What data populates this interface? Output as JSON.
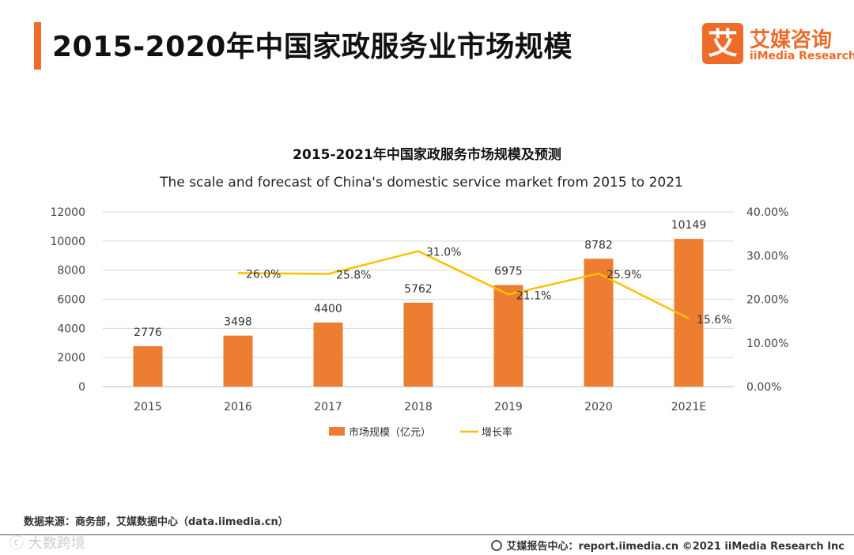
{
  "header": {
    "title": "2015-2020年中国家政服务业市场规模"
  },
  "logo": {
    "mark": "艾",
    "name_cn": "艾媒咨询",
    "name_en": "iiMedia Research"
  },
  "chart_data": {
    "type": "bar",
    "title": "2015-2021年中国家政服务市场规模及预测",
    "subtitle": "The scale and forecast of China's domestic service market from 2015 to 2021",
    "categories": [
      "2015",
      "2016",
      "2017",
      "2018",
      "2019",
      "2020",
      "2021E"
    ],
    "series": [
      {
        "name": "市场规模（亿元）",
        "type": "bar",
        "axis": "left",
        "color": "#ed7d31",
        "values": [
          2776,
          3498,
          4400,
          5762,
          6975,
          8782,
          10149
        ],
        "labels": [
          "2776",
          "3498",
          "4400",
          "5762",
          "6975",
          "8782",
          "10149"
        ]
      },
      {
        "name": "增长率",
        "type": "line",
        "axis": "right",
        "color": "#ffc000",
        "values": [
          null,
          26.0,
          25.8,
          31.0,
          21.1,
          25.9,
          15.6
        ],
        "labels": [
          "",
          "26.0%",
          "25.8%",
          "31.0%",
          "21.1%",
          "25.9%",
          "15.6%"
        ]
      }
    ],
    "ylim": [
      0,
      12000
    ],
    "y_ticks": [
      "0",
      "2000",
      "4000",
      "6000",
      "8000",
      "10000",
      "12000"
    ],
    "y2lim": [
      0,
      40
    ],
    "y2_ticks": [
      "0.00%",
      "10.00%",
      "20.00%",
      "30.00%",
      "40.00%"
    ],
    "grid": true,
    "legend_position": "bottom"
  },
  "source": "数据来源：商务部，艾媒数据中心（data.iimedia.cn）",
  "watermark": "ⓒ 大数跨境",
  "footer": "艾媒报告中心：report.iimedia.cn  ©2021  iiMedia Research  Inc"
}
